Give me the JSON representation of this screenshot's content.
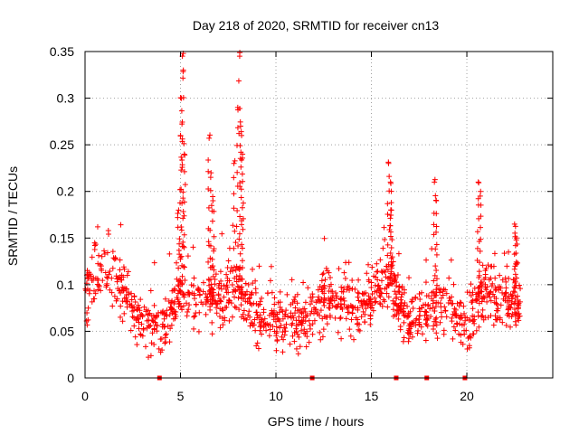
{
  "chart_data": {
    "type": "scatter",
    "title": "Day 218 of 2020, SRMTID for receiver cn13",
    "xlabel": "GPS time / hours",
    "ylabel": "SRMTID / TECUs",
    "xlim": [
      0,
      24.5
    ],
    "ylim": [
      0,
      0.35
    ],
    "xticks": [
      0,
      5,
      10,
      15,
      20
    ],
    "xtick_labels": [
      "0",
      "5",
      "10",
      "15",
      "20"
    ],
    "yticks": [
      0,
      0.05,
      0.1,
      0.15,
      0.2,
      0.25,
      0.3,
      0.35
    ],
    "ytick_labels": [
      "0",
      "0.05",
      "0.1",
      "0.15",
      "0.2",
      "0.25",
      "0.3",
      "0.35"
    ],
    "grid": true,
    "marker": "+",
    "color": "#ff0000",
    "zero_markers_x": [
      3.9,
      11.9,
      16.3,
      17.9,
      19.9
    ],
    "peak_points": [
      {
        "x": 4.9,
        "y": 0.18
      },
      {
        "x": 5.0,
        "y": 0.26
      },
      {
        "x": 5.05,
        "y": 0.3
      },
      {
        "x": 5.1,
        "y": 0.345
      },
      {
        "x": 5.15,
        "y": 0.33
      },
      {
        "x": 5.2,
        "y": 0.24
      },
      {
        "x": 6.5,
        "y": 0.257
      },
      {
        "x": 6.6,
        "y": 0.22
      },
      {
        "x": 6.7,
        "y": 0.19
      },
      {
        "x": 7.8,
        "y": 0.23
      },
      {
        "x": 8.0,
        "y": 0.29
      },
      {
        "x": 8.1,
        "y": 0.345
      },
      {
        "x": 8.15,
        "y": 0.27
      },
      {
        "x": 8.2,
        "y": 0.26
      },
      {
        "x": 8.25,
        "y": 0.24
      },
      {
        "x": 15.9,
        "y": 0.23
      },
      {
        "x": 16.0,
        "y": 0.21
      },
      {
        "x": 16.05,
        "y": 0.18
      },
      {
        "x": 18.3,
        "y": 0.21
      },
      {
        "x": 18.4,
        "y": 0.19
      },
      {
        "x": 20.6,
        "y": 0.21
      },
      {
        "x": 20.7,
        "y": 0.195
      },
      {
        "x": 22.5,
        "y": 0.165
      },
      {
        "x": 22.6,
        "y": 0.15
      }
    ],
    "trend": [
      {
        "x": 0.0,
        "y": 0.085
      },
      {
        "x": 0.5,
        "y": 0.11
      },
      {
        "x": 1.0,
        "y": 0.115
      },
      {
        "x": 1.5,
        "y": 0.11
      },
      {
        "x": 2.0,
        "y": 0.09
      },
      {
        "x": 2.5,
        "y": 0.075
      },
      {
        "x": 3.0,
        "y": 0.065
      },
      {
        "x": 3.5,
        "y": 0.055
      },
      {
        "x": 4.0,
        "y": 0.055
      },
      {
        "x": 4.5,
        "y": 0.07
      },
      {
        "x": 5.0,
        "y": 0.09
      },
      {
        "x": 5.5,
        "y": 0.085
      },
      {
        "x": 6.0,
        "y": 0.08
      },
      {
        "x": 6.5,
        "y": 0.085
      },
      {
        "x": 7.0,
        "y": 0.08
      },
      {
        "x": 7.5,
        "y": 0.085
      },
      {
        "x": 8.0,
        "y": 0.095
      },
      {
        "x": 8.5,
        "y": 0.08
      },
      {
        "x": 9.0,
        "y": 0.065
      },
      {
        "x": 9.5,
        "y": 0.06
      },
      {
        "x": 10.0,
        "y": 0.06
      },
      {
        "x": 10.5,
        "y": 0.06
      },
      {
        "x": 11.0,
        "y": 0.06
      },
      {
        "x": 11.5,
        "y": 0.058
      },
      {
        "x": 12.0,
        "y": 0.07
      },
      {
        "x": 12.5,
        "y": 0.085
      },
      {
        "x": 13.0,
        "y": 0.08
      },
      {
        "x": 13.5,
        "y": 0.075
      },
      {
        "x": 14.0,
        "y": 0.075
      },
      {
        "x": 14.5,
        "y": 0.08
      },
      {
        "x": 15.0,
        "y": 0.085
      },
      {
        "x": 15.5,
        "y": 0.1
      },
      {
        "x": 16.0,
        "y": 0.105
      },
      {
        "x": 16.5,
        "y": 0.075
      },
      {
        "x": 17.0,
        "y": 0.06
      },
      {
        "x": 17.5,
        "y": 0.065
      },
      {
        "x": 18.0,
        "y": 0.07
      },
      {
        "x": 18.5,
        "y": 0.08
      },
      {
        "x": 19.0,
        "y": 0.075
      },
      {
        "x": 19.5,
        "y": 0.065
      },
      {
        "x": 20.0,
        "y": 0.06
      },
      {
        "x": 20.5,
        "y": 0.075
      },
      {
        "x": 21.0,
        "y": 0.1
      },
      {
        "x": 21.5,
        "y": 0.09
      },
      {
        "x": 22.0,
        "y": 0.08
      },
      {
        "x": 22.5,
        "y": 0.085
      },
      {
        "x": 22.8,
        "y": 0.075
      }
    ],
    "scatter_n": 1300,
    "scatter_spread": 0.028,
    "scatter_x_range": [
      0.0,
      22.8
    ],
    "scatter_seed": 218
  }
}
